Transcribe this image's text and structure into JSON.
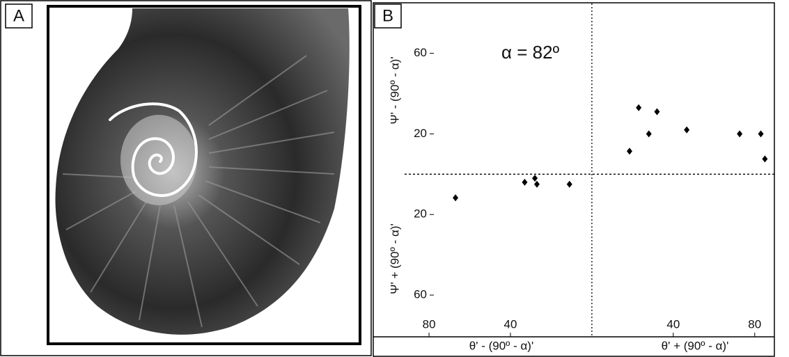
{
  "panel_labels": [
    "A",
    "B"
  ],
  "chart_data": {
    "type": "scatter",
    "annotation": "α = 82º",
    "y_label_top": "Ψ' - (90º - α)'",
    "y_label_bottom": "Ψ' + (90º - α)'",
    "x_label_left": "θ' - (90º - α)'",
    "x_label_right": "θ' + (90º - α)'",
    "x": [
      -67,
      -33,
      -28,
      -27,
      -11,
      18.5,
      23,
      28,
      32,
      46.6,
      72.6,
      83,
      85
    ],
    "values": [
      -11.7,
      -4,
      -2,
      -5,
      -5,
      11.4,
      33,
      20,
      31,
      22,
      20,
      20,
      7.6
    ],
    "color": "#000000",
    "xlim": [
      -92,
      90
    ],
    "ylim": [
      -70,
      83
    ],
    "xticks": [
      {
        "value": -80,
        "label": "80"
      },
      {
        "value": -40,
        "label": "40"
      },
      40,
      80
    ],
    "yticks": [
      60,
      20,
      {
        "value": -20,
        "label": "20"
      },
      {
        "value": -60,
        "label": "60"
      }
    ]
  }
}
